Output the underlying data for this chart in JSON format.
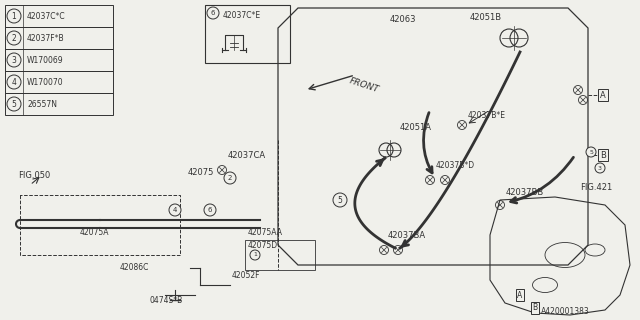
{
  "bg_color": "#f0f0eb",
  "legend_items": [
    {
      "num": "1",
      "code": "42037C*C"
    },
    {
      "num": "2",
      "code": "42037F*B"
    },
    {
      "num": "3",
      "code": "W170069"
    },
    {
      "num": "4",
      "code": "W170070"
    },
    {
      "num": "5",
      "code": "26557N"
    }
  ],
  "diagram_id": "A420001383"
}
